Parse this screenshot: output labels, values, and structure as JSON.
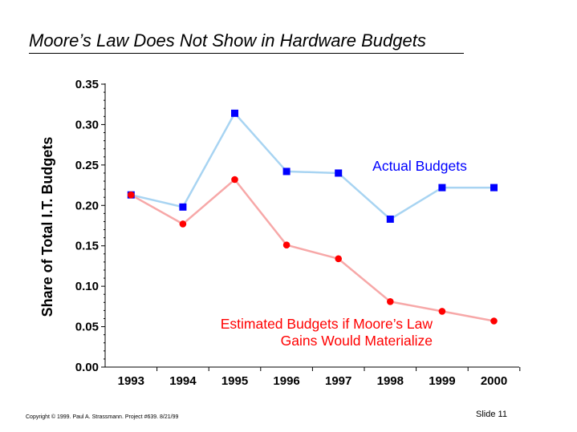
{
  "slide": {
    "title": "Moore’s Law Does Not Show in Hardware Budgets",
    "copyright": "Copyright © 1999. Paul A. Strassmann. Project #639.     8/21/99",
    "slide_number": "Slide 11"
  },
  "chart_data": {
    "type": "line",
    "title": "Moore’s Law Does Not Show in Hardware Budgets",
    "xlabel": "",
    "ylabel": "Share of Total I.T. Budgets",
    "categories": [
      "1993",
      "1994",
      "1995",
      "1996",
      "1997",
      "1998",
      "1999",
      "2000"
    ],
    "ylim": [
      0,
      0.35
    ],
    "yticks": [
      "0.00",
      "0.05",
      "0.10",
      "0.15",
      "0.20",
      "0.25",
      "0.30",
      "0.35"
    ],
    "grid": false,
    "series": [
      {
        "name": "Actual Budgets",
        "label_lines": [
          "Actual Budgets"
        ],
        "marker": "square",
        "marker_color": "#0000ff",
        "line_color": "#a8d4f2",
        "label_color": "#0000ff",
        "values": [
          0.213,
          0.198,
          0.314,
          0.242,
          0.24,
          0.183,
          0.222,
          0.222
        ]
      },
      {
        "name": "Estimated Budgets if Moore’s Law Gains Would Materialize",
        "label_lines": [
          "Estimated Budgets if Moore’s Law",
          "Gains Would Materialize"
        ],
        "marker": "circle",
        "marker_color": "#ff0000",
        "line_color": "#f7a8a8",
        "label_color": "#ff0000",
        "values": [
          0.213,
          0.177,
          0.232,
          0.151,
          0.134,
          0.081,
          0.069,
          0.057
        ]
      }
    ]
  }
}
